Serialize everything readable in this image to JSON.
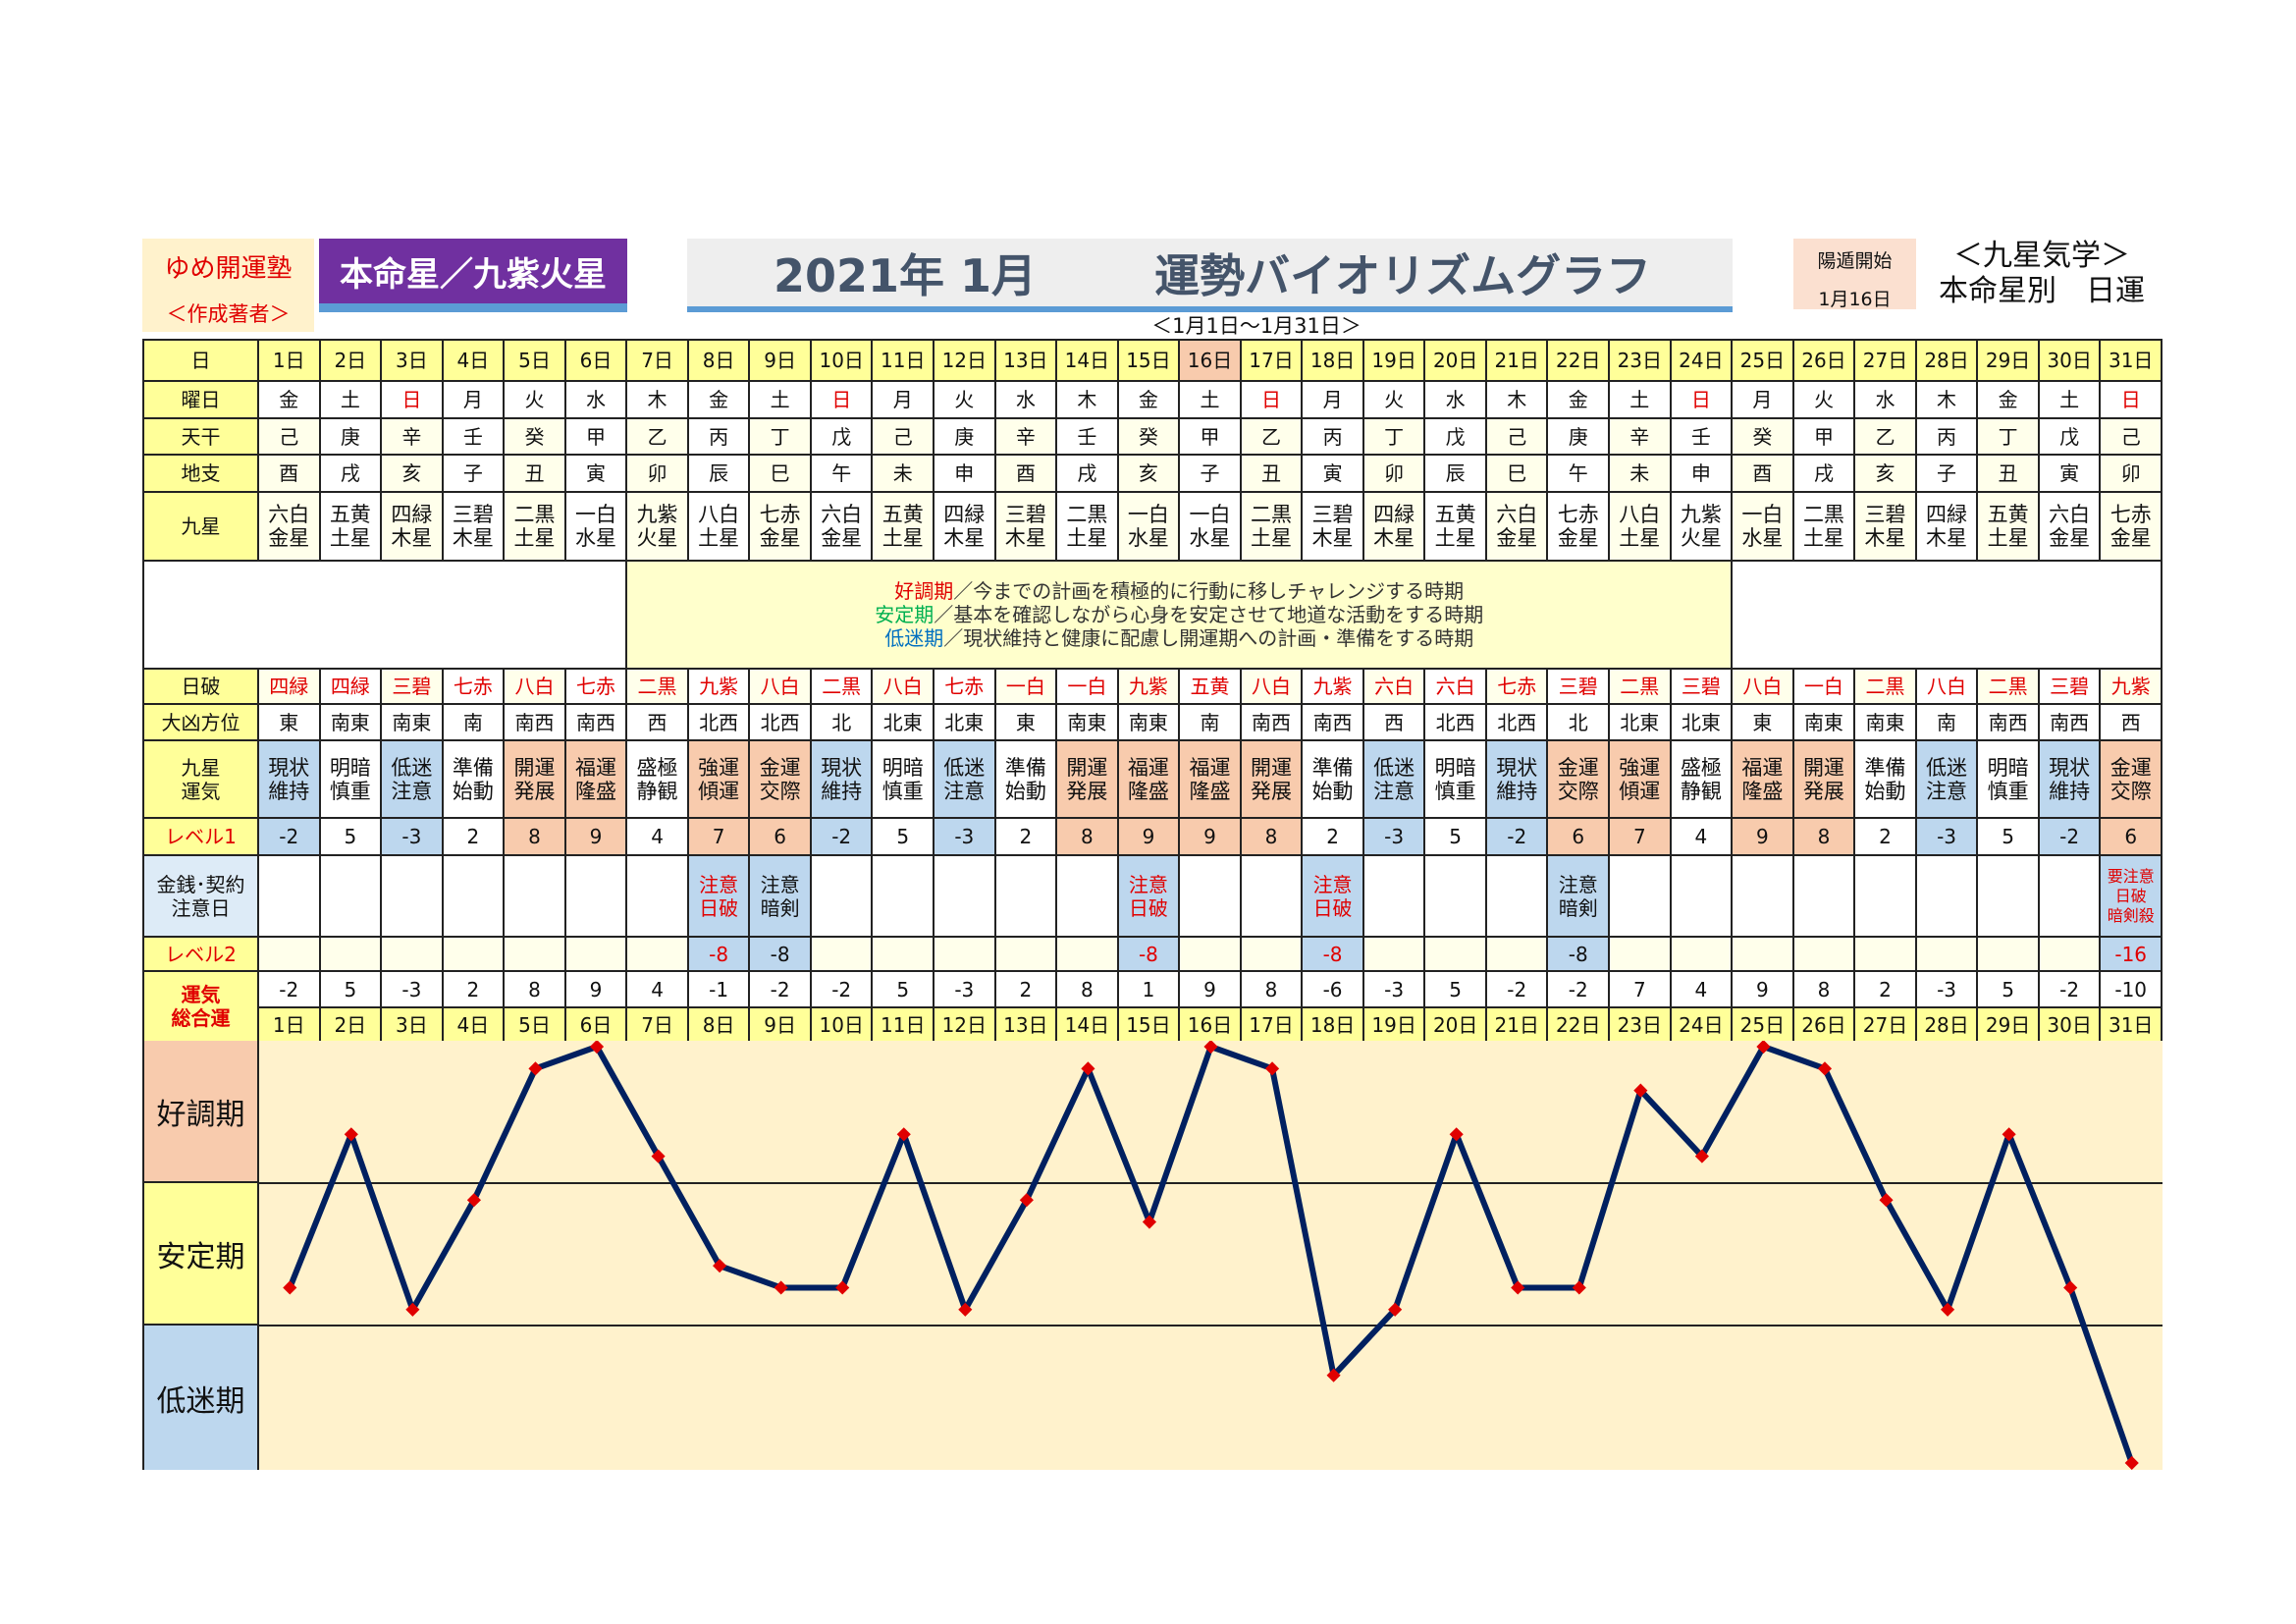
{
  "header": {
    "author_name": "ゆめ開運塾",
    "author_role": "＜作成著者＞",
    "honmei": "本命星／九紫火星",
    "year_month": "2021年 1月",
    "title": "運勢バイオリズムグラフ",
    "range": "＜1月1日～1月31日＞",
    "youton_label": "陽遁開始",
    "youton_date": "1月16日",
    "kyusei_title": "＜九星気学＞",
    "kyusei_sub": "本命星別　日運"
  },
  "labels": {
    "day": "日",
    "weekday": "曜日",
    "kan": "天干",
    "shi": "地支",
    "star": "九星",
    "hagyo": "日破",
    "direction": "大凶方位",
    "fortune": [
      "九星",
      "運気"
    ],
    "level1": "レベル1",
    "money": [
      "金銭･契約",
      "注意日"
    ],
    "level2": "レベル2",
    "total": [
      "運気",
      "総合運"
    ]
  },
  "legend": [
    {
      "term": "好調期",
      "text": "／今までの計画を積極的に行動に移しチャレンジする時期"
    },
    {
      "term": "安定期",
      "text": "／基本を確認しながら心身を安定させて地道な活動をする時期"
    },
    {
      "term": "低迷期",
      "text": "／現状維持と健康に配慮し開運期への計画・準備をする時期"
    }
  ],
  "colors": {
    "positive": "#F8CBAD",
    "negative": "#BDD7EE",
    "header": "#FFFF99",
    "line": "#002060",
    "marker": "#E00000",
    "chart_bg": "#FFF2CC"
  },
  "highlight_day": "16日",
  "rows": {
    "day": [
      "1日",
      "2日",
      "3日",
      "4日",
      "5日",
      "6日",
      "7日",
      "8日",
      "9日",
      "10日",
      "11日",
      "12日",
      "13日",
      "14日",
      "15日",
      "16日",
      "17日",
      "18日",
      "19日",
      "20日",
      "21日",
      "22日",
      "23日",
      "24日",
      "25日",
      "26日",
      "27日",
      "28日",
      "29日",
      "30日",
      "31日"
    ],
    "weekday": [
      "金",
      "土",
      "日",
      "月",
      "火",
      "水",
      "木",
      "金",
      "土",
      "日",
      "月",
      "火",
      "水",
      "木",
      "金",
      "土",
      "日",
      "月",
      "火",
      "水",
      "木",
      "金",
      "土",
      "日",
      "月",
      "火",
      "水",
      "木",
      "金",
      "土",
      "日"
    ],
    "kan": [
      "己",
      "庚",
      "辛",
      "壬",
      "癸",
      "甲",
      "乙",
      "丙",
      "丁",
      "戊",
      "己",
      "庚",
      "辛",
      "壬",
      "癸",
      "甲",
      "乙",
      "丙",
      "丁",
      "戊",
      "己",
      "庚",
      "辛",
      "壬",
      "癸",
      "甲",
      "乙",
      "丙",
      "丁",
      "戊",
      "己"
    ],
    "shi": [
      "酉",
      "戌",
      "亥",
      "子",
      "丑",
      "寅",
      "卯",
      "辰",
      "巳",
      "午",
      "未",
      "申",
      "酉",
      "戌",
      "亥",
      "子",
      "丑",
      "寅",
      "卯",
      "辰",
      "巳",
      "午",
      "未",
      "申",
      "酉",
      "戌",
      "亥",
      "子",
      "丑",
      "寅",
      "卯"
    ],
    "star": [
      [
        "六白",
        "金星"
      ],
      [
        "五黄",
        "土星"
      ],
      [
        "四緑",
        "木星"
      ],
      [
        "三碧",
        "木星"
      ],
      [
        "二黒",
        "土星"
      ],
      [
        "一白",
        "水星"
      ],
      [
        "九紫",
        "火星"
      ],
      [
        "八白",
        "土星"
      ],
      [
        "七赤",
        "金星"
      ],
      [
        "六白",
        "金星"
      ],
      [
        "五黄",
        "土星"
      ],
      [
        "四緑",
        "木星"
      ],
      [
        "三碧",
        "木星"
      ],
      [
        "二黒",
        "土星"
      ],
      [
        "一白",
        "水星"
      ],
      [
        "一白",
        "水星"
      ],
      [
        "二黒",
        "土星"
      ],
      [
        "三碧",
        "木星"
      ],
      [
        "四緑",
        "木星"
      ],
      [
        "五黄",
        "土星"
      ],
      [
        "六白",
        "金星"
      ],
      [
        "七赤",
        "金星"
      ],
      [
        "八白",
        "土星"
      ],
      [
        "九紫",
        "火星"
      ],
      [
        "一白",
        "水星"
      ],
      [
        "二黒",
        "土星"
      ],
      [
        "三碧",
        "木星"
      ],
      [
        "四緑",
        "木星"
      ],
      [
        "五黄",
        "土星"
      ],
      [
        "六白",
        "金星"
      ],
      [
        "七赤",
        "金星"
      ]
    ],
    "hagyo": [
      "四緑",
      "四緑",
      "三碧",
      "七赤",
      "八白",
      "七赤",
      "二黒",
      "九紫",
      "八白",
      "二黒",
      "八白",
      "七赤",
      "一白",
      "一白",
      "九紫",
      "五黄",
      "八白",
      "九紫",
      "六白",
      "六白",
      "七赤",
      "三碧",
      "二黒",
      "三碧",
      "八白",
      "一白",
      "二黒",
      "八白",
      "二黒",
      "三碧",
      "九紫"
    ],
    "direction": [
      "東",
      "南東",
      "南東",
      "南",
      "南西",
      "南西",
      "西",
      "北西",
      "北西",
      "北",
      "北東",
      "北東",
      "東",
      "南東",
      "南東",
      "南",
      "南西",
      "南西",
      "西",
      "北西",
      "北西",
      "北",
      "北東",
      "北東",
      "東",
      "南東",
      "南東",
      "南",
      "南西",
      "南西",
      "西"
    ],
    "fortune": [
      [
        "現状",
        "維持"
      ],
      [
        "明暗",
        "慎重"
      ],
      [
        "低迷",
        "注意"
      ],
      [
        "準備",
        "始動"
      ],
      [
        "開運",
        "発展"
      ],
      [
        "福運",
        "隆盛"
      ],
      [
        "盛極",
        "静観"
      ],
      [
        "強運",
        "傾運"
      ],
      [
        "金運",
        "交際"
      ],
      [
        "現状",
        "維持"
      ],
      [
        "明暗",
        "慎重"
      ],
      [
        "低迷",
        "注意"
      ],
      [
        "準備",
        "始動"
      ],
      [
        "開運",
        "発展"
      ],
      [
        "福運",
        "隆盛"
      ],
      [
        "福運",
        "隆盛"
      ],
      [
        "開運",
        "発展"
      ],
      [
        "準備",
        "始動"
      ],
      [
        "低迷",
        "注意"
      ],
      [
        "明暗",
        "慎重"
      ],
      [
        "現状",
        "維持"
      ],
      [
        "金運",
        "交際"
      ],
      [
        "強運",
        "傾運"
      ],
      [
        "盛極",
        "静観"
      ],
      [
        "福運",
        "隆盛"
      ],
      [
        "開運",
        "発展"
      ],
      [
        "準備",
        "始動"
      ],
      [
        "低迷",
        "注意"
      ],
      [
        "明暗",
        "慎重"
      ],
      [
        "現状",
        "維持"
      ],
      [
        "金運",
        "交際"
      ]
    ],
    "level1": [
      -2,
      5,
      -3,
      2,
      8,
      9,
      4,
      7,
      6,
      -2,
      5,
      -3,
      2,
      8,
      9,
      9,
      8,
      2,
      -3,
      5,
      -2,
      6,
      7,
      4,
      9,
      8,
      2,
      -3,
      5,
      -2,
      6
    ],
    "money": [
      [],
      [],
      [],
      [],
      [],
      [],
      [],
      [
        {
          "t": "注意",
          "red": true
        },
        {
          "t": "日破",
          "red": true
        }
      ],
      [
        {
          "t": "注意",
          "red": false
        },
        {
          "t": "暗剣",
          "red": false
        }
      ],
      [],
      [],
      [],
      [],
      [],
      [
        {
          "t": "注意",
          "red": true
        },
        {
          "t": "日破",
          "red": true
        }
      ],
      [],
      [],
      [
        {
          "t": "注意",
          "red": true
        },
        {
          "t": "日破",
          "red": true
        }
      ],
      [],
      [],
      [],
      [
        {
          "t": "注意",
          "red": false
        },
        {
          "t": "暗剣",
          "red": false
        }
      ],
      [],
      [],
      [],
      [],
      [],
      [],
      [],
      [],
      [
        {
          "t": "要注意",
          "red": true
        },
        {
          "t": "日破",
          "red": true
        },
        {
          "t": "暗剣殺",
          "red": true
        }
      ]
    ],
    "level2": [
      null,
      null,
      null,
      null,
      null,
      null,
      null,
      {
        "v": -8,
        "red": true
      },
      {
        "v": -8,
        "red": false
      },
      null,
      null,
      null,
      null,
      null,
      {
        "v": -8,
        "red": true
      },
      null,
      null,
      {
        "v": -8,
        "red": true
      },
      null,
      null,
      null,
      {
        "v": -8,
        "red": false
      },
      null,
      null,
      null,
      null,
      null,
      null,
      null,
      null,
      {
        "v": -16,
        "red": true
      }
    ],
    "total": [
      -2,
      5,
      -3,
      2,
      8,
      9,
      4,
      -1,
      -2,
      -2,
      5,
      -3,
      2,
      8,
      1,
      9,
      8,
      -6,
      -3,
      5,
      -2,
      -2,
      7,
      4,
      9,
      8,
      2,
      -3,
      5,
      -2,
      -10
    ]
  },
  "chart_data": {
    "type": "line",
    "categories": [
      "1日",
      "2日",
      "3日",
      "4日",
      "5日",
      "6日",
      "7日",
      "8日",
      "9日",
      "10日",
      "11日",
      "12日",
      "13日",
      "14日",
      "15日",
      "16日",
      "17日",
      "18日",
      "19日",
      "20日",
      "21日",
      "22日",
      "23日",
      "24日",
      "25日",
      "26日",
      "27日",
      "28日",
      "29日",
      "30日",
      "31日"
    ],
    "values": [
      -2,
      5,
      -3,
      2,
      8,
      9,
      4,
      -1,
      -2,
      -2,
      5,
      -3,
      2,
      8,
      1,
      9,
      8,
      -6,
      -3,
      5,
      -2,
      -2,
      7,
      4,
      9,
      8,
      2,
      -3,
      5,
      -2,
      -10
    ],
    "bands": [
      "好調期",
      "安定期",
      "低迷期"
    ],
    "ylim": [
      -10,
      9
    ],
    "grid": true
  }
}
